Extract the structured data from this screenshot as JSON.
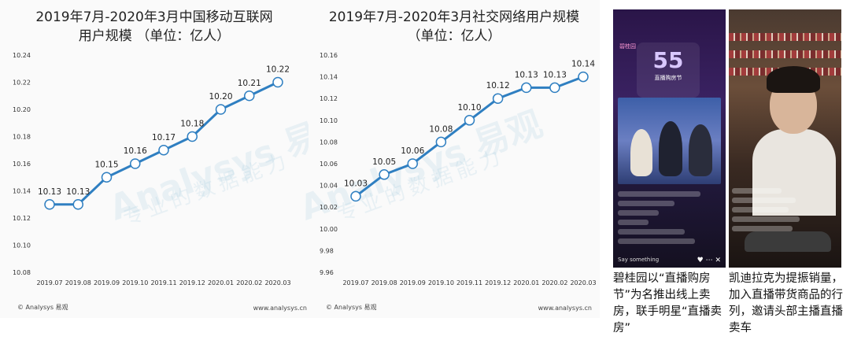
{
  "charts": [
    {
      "title": "2019年7月-2020年3月中国移动互联网\n用户规模 （单位：亿人）",
      "footer_left": "© Analysys 易观",
      "footer_right": "www.analysys.cn"
    },
    {
      "title": "2019年7月-2020年3月社交网络用户规模\n（单位：亿人）",
      "footer_left": "© Analysys 易观",
      "footer_right": "www.analysys.cn"
    }
  ],
  "watermark": "Analysys 易观",
  "watermark_sub": "专业的数据能力",
  "chart_data": [
    {
      "type": "line",
      "title": "2019年7月-2020年3月中国移动互联网用户规模 （单位：亿人）",
      "categories": [
        "2019.07",
        "2019.08",
        "2019.09",
        "2019.10",
        "2019.11",
        "2019.12",
        "2020.01",
        "2020.02",
        "2020.03"
      ],
      "values": [
        10.13,
        10.13,
        10.15,
        10.16,
        10.17,
        10.18,
        10.2,
        10.21,
        10.22
      ],
      "data_labels": [
        "10.13",
        "10.13",
        "10.15",
        "10.16",
        "10.17",
        "10.18",
        "10.20",
        "10.21",
        "10.22"
      ],
      "ylim": [
        10.08,
        10.24
      ],
      "yticks": [
        "10.24",
        "10.22",
        "10.20",
        "10.18",
        "10.16",
        "10.14",
        "10.12",
        "10.10",
        "10.08"
      ],
      "line_color": "#2f7fc1",
      "grid": false
    },
    {
      "type": "line",
      "title": "2019年7月-2020年3月社交网络用户规模 （单位：亿人）",
      "categories": [
        "2019.07",
        "2019.08",
        "2019.09",
        "2019.10",
        "2019.11",
        "2019.12",
        "2020.01",
        "2020.02",
        "2020.03"
      ],
      "values": [
        10.03,
        10.05,
        10.06,
        10.08,
        10.1,
        10.12,
        10.13,
        10.13,
        10.14
      ],
      "data_labels": [
        "10.03",
        "10.05",
        "10.06",
        "10.08",
        "10.10",
        "10.12",
        "10.13",
        "10.13",
        "10.14"
      ],
      "ylim": [
        9.96,
        10.16
      ],
      "yticks": [
        "10.16",
        "10.14",
        "10.12",
        "10.10",
        "10.08",
        "10.06",
        "10.04",
        "10.02",
        "10.00",
        "9.98",
        "9.96"
      ],
      "line_color": "#2f7fc1",
      "grid": false
    }
  ],
  "photos": [
    {
      "caption": "碧桂园以“直播购房节”为名推出线上卖房，联手明星“直播卖房”",
      "status_time": "",
      "event_big": "55",
      "event_small": "直播购房节",
      "brand": "碧桂园",
      "say": "Say something",
      "icons": "♥ ⋯ ✕"
    },
    {
      "caption": "凯迪拉克为提振销量，加入直播带货商品的行列，邀请头部主播直播卖车"
    }
  ]
}
